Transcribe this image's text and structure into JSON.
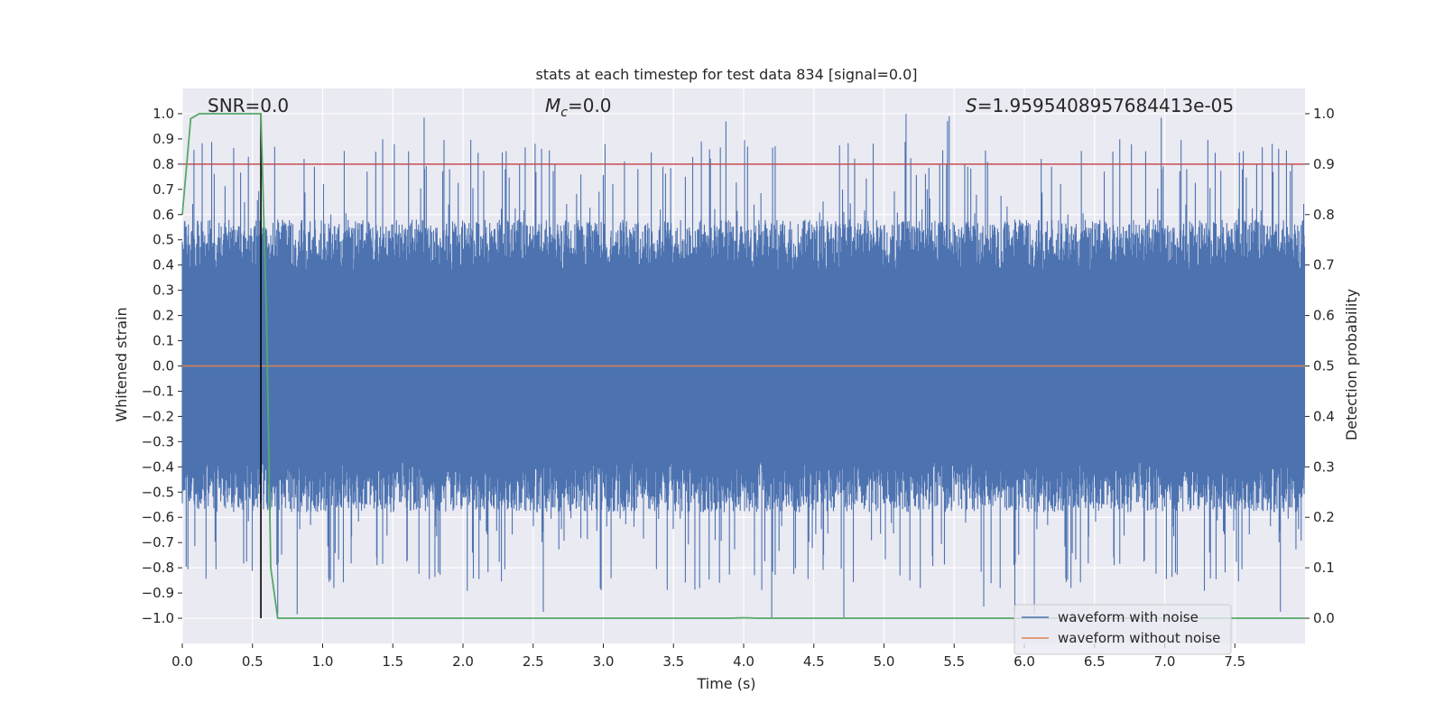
{
  "chart_data": {
    "type": "line",
    "title": "stats at each timestep for test data 834 [signal=0.0]",
    "xlabel": "Time (s)",
    "ylabel": "Whitened strain",
    "y2label": "Detection probability",
    "xlim": [
      0.0,
      8.0
    ],
    "ylim": [
      -1.1,
      1.1
    ],
    "y2lim": [
      -0.05,
      1.05
    ],
    "xticks": [
      "0.0",
      "0.5",
      "1.0",
      "1.5",
      "2.0",
      "2.5",
      "3.0",
      "3.5",
      "4.0",
      "4.5",
      "5.0",
      "5.5",
      "6.0",
      "6.5",
      "7.0",
      "7.5"
    ],
    "yticks": [
      "1.0",
      "0.9",
      "0.8",
      "0.7",
      "0.6",
      "0.5",
      "0.4",
      "0.3",
      "0.2",
      "0.1",
      "0.0",
      "−0.1",
      "−0.2",
      "−0.3",
      "−0.4",
      "−0.5",
      "−0.6",
      "−0.7",
      "−0.8",
      "−0.9",
      "−1.0"
    ],
    "y2ticks": [
      "1.0",
      "0.9",
      "0.8",
      "0.7",
      "0.6",
      "0.5",
      "0.4",
      "0.3",
      "0.2",
      "0.1",
      "0.0"
    ],
    "annotations": {
      "snr_label": "SNR=0.0",
      "mc_symbol": "M",
      "mc_sub": "c",
      "mc_value": "=0.0",
      "s_symbol": "S",
      "s_value": "=1.9595408957684413e-05"
    },
    "threshold": 0.8,
    "marker_time": 0.56,
    "series": [
      {
        "name": "waveform with noise",
        "color": "#4c72b0",
        "description_values": "noise envelope approx ±0.55, spikes up to ±1.0"
      },
      {
        "name": "waveform without noise",
        "color": "#dd8452",
        "values": [
          0.0
        ]
      },
      {
        "name": "detection probability",
        "color": "#55a868",
        "x": [
          0.0,
          0.06,
          0.12,
          0.2,
          0.3,
          0.4,
          0.5,
          0.56,
          0.6,
          0.63,
          0.68,
          1.0,
          3.9,
          4.0,
          4.1,
          8.0
        ],
        "values": [
          0.8,
          0.99,
          1.0,
          1.0,
          1.0,
          1.0,
          1.0,
          1.0,
          0.6,
          0.1,
          0.0,
          0.0,
          0.0,
          0.001,
          0.0,
          0.0
        ]
      }
    ],
    "legend": [
      {
        "label": "waveform with noise",
        "color": "#4c72b0"
      },
      {
        "label": "waveform without noise",
        "color": "#dd8452"
      }
    ]
  },
  "colors": {
    "axes_bg": "#eaeaf2",
    "grid": "#ffffff",
    "noise": "#4c72b0",
    "clean": "#dd8452",
    "prob": "#55a868",
    "threshold": "#c44e52",
    "marker": "#000000"
  }
}
